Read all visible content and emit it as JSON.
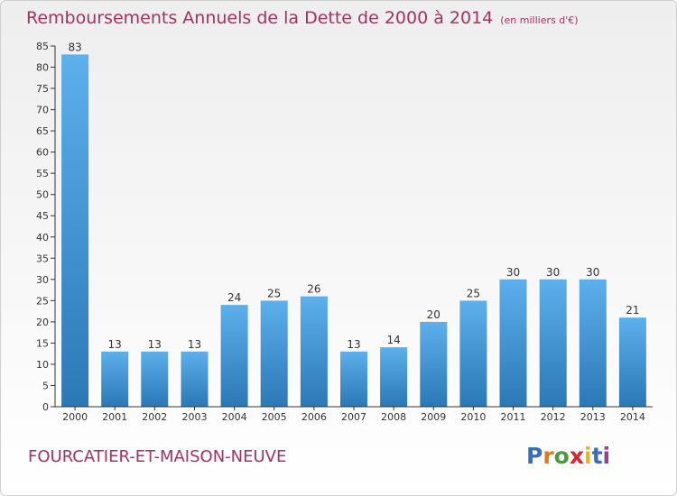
{
  "header": {
    "title": "Remboursements Annuels de la Dette de 2000 à 2014",
    "unit": "(en milliers d'€)"
  },
  "footer": {
    "town": "FOURCATIER-ET-MAISON-NEUVE",
    "logo_text": "Proxiti",
    "logo_colors": [
      "#3b6fb5",
      "#e4791c",
      "#4f9b3a",
      "#d7262e",
      "#e8b51b",
      "#3b6fb5",
      "#9a3d94"
    ]
  },
  "colors": {
    "bar_light": "#5cb0ec",
    "bar_dark": "#2b78b6",
    "text": "#333333",
    "accent": "#a3325f"
  },
  "chart_data": {
    "type": "bar",
    "title": "Remboursements Annuels de la Dette de 2000 à 2014",
    "subtitle": "(en milliers d'€)",
    "xlabel": "",
    "ylabel": "",
    "categories": [
      "2000",
      "2001",
      "2002",
      "2003",
      "2004",
      "2005",
      "2006",
      "2007",
      "2008",
      "2009",
      "2010",
      "2011",
      "2012",
      "2013",
      "2014"
    ],
    "values": [
      83,
      13,
      13,
      13,
      24,
      25,
      26,
      13,
      14,
      20,
      25,
      30,
      30,
      30,
      21
    ],
    "ylim": [
      0,
      85
    ],
    "yticks": [
      0,
      5,
      10,
      15,
      20,
      25,
      30,
      35,
      40,
      45,
      50,
      55,
      60,
      65,
      70,
      75,
      80,
      85
    ],
    "grid": false,
    "legend": "none"
  }
}
